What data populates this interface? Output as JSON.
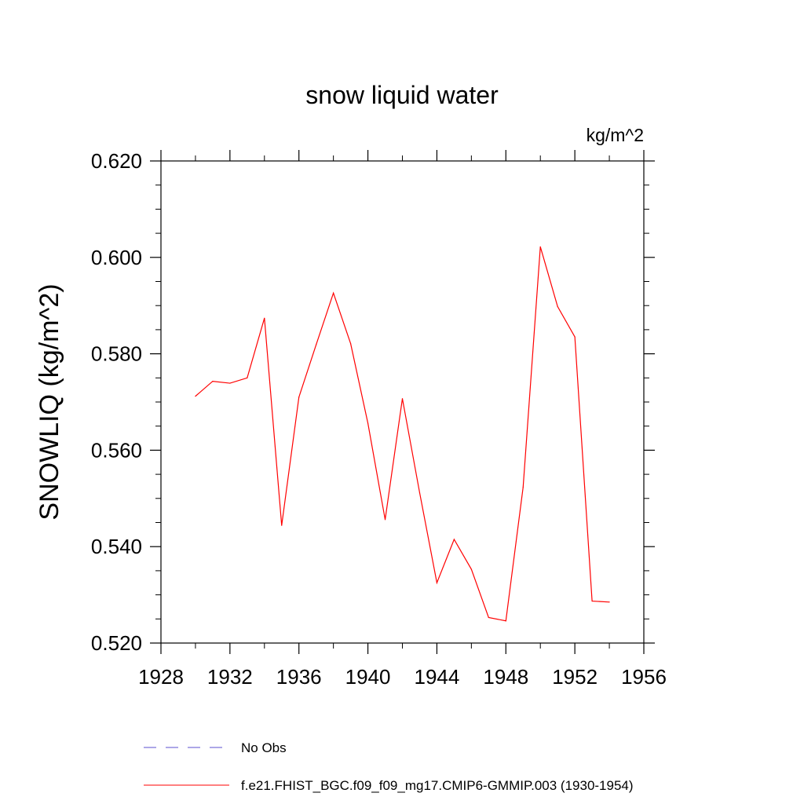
{
  "chart_data": {
    "type": "line",
    "title": "snow liquid water",
    "units": "kg/m^2",
    "ylabel": "SNOWLIQ  (kg/m^2)",
    "xlabel": "",
    "xlim": [
      1928,
      1956
    ],
    "ylim": [
      0.52,
      0.62
    ],
    "xticks": [
      "1928",
      "1932",
      "1936",
      "1940",
      "1944",
      "1948",
      "1952",
      "1956"
    ],
    "yticks": [
      "0.520",
      "0.540",
      "0.560",
      "0.580",
      "0.600",
      "0.620"
    ],
    "grid": false,
    "legend_position": "bottom",
    "legend": [
      {
        "label": "No Obs",
        "color": "#5b4fcf",
        "style": "dashed"
      },
      {
        "label": "f.e21.FHIST_BGC.f09_f09_mg17.CMIP6-GMMIP.003 (1930-1954)",
        "color": "#ff0000",
        "style": "solid"
      }
    ],
    "series": [
      {
        "name": "f.e21.FHIST_BGC.f09_f09_mg17.CMIP6-GMMIP.003 (1930-1954)",
        "color": "#ff0000",
        "x": [
          1930,
          1931,
          1932,
          1933,
          1934,
          1935,
          1936,
          1937,
          1938,
          1939,
          1940,
          1941,
          1942,
          1943,
          1944,
          1945,
          1946,
          1947,
          1948,
          1949,
          1950,
          1951,
          1952,
          1953,
          1954
        ],
        "y": [
          0.5712,
          0.5743,
          0.5739,
          0.575,
          0.5874,
          0.5444,
          0.571,
          0.5819,
          0.5926,
          0.5821,
          0.5656,
          0.5456,
          0.5707,
          0.5512,
          0.5325,
          0.5415,
          0.5353,
          0.5253,
          0.5246,
          0.5523,
          0.6022,
          0.5898,
          0.5835,
          0.5287,
          0.5285
        ]
      }
    ]
  }
}
